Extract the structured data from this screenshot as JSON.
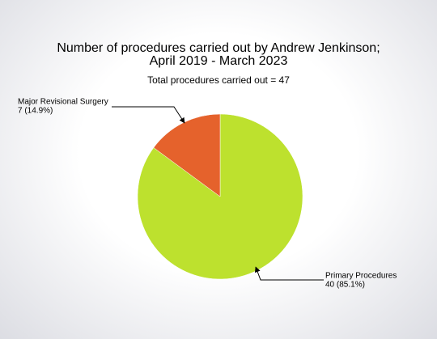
{
  "chart_data": {
    "type": "pie",
    "title": [
      "Number of procedures carried out by Andrew Jenkinson;",
      "April 2019 - March 2023"
    ],
    "subtitle": "Total procedures carried out = 47",
    "categories": [
      "Primary Procedures",
      "Major Revisional Surgery"
    ],
    "values": [
      40,
      7
    ],
    "value_labels": [
      "40 (85.1%)",
      "7 (14.9%)"
    ],
    "colors": [
      "#bde12e",
      "#e5622c"
    ]
  }
}
